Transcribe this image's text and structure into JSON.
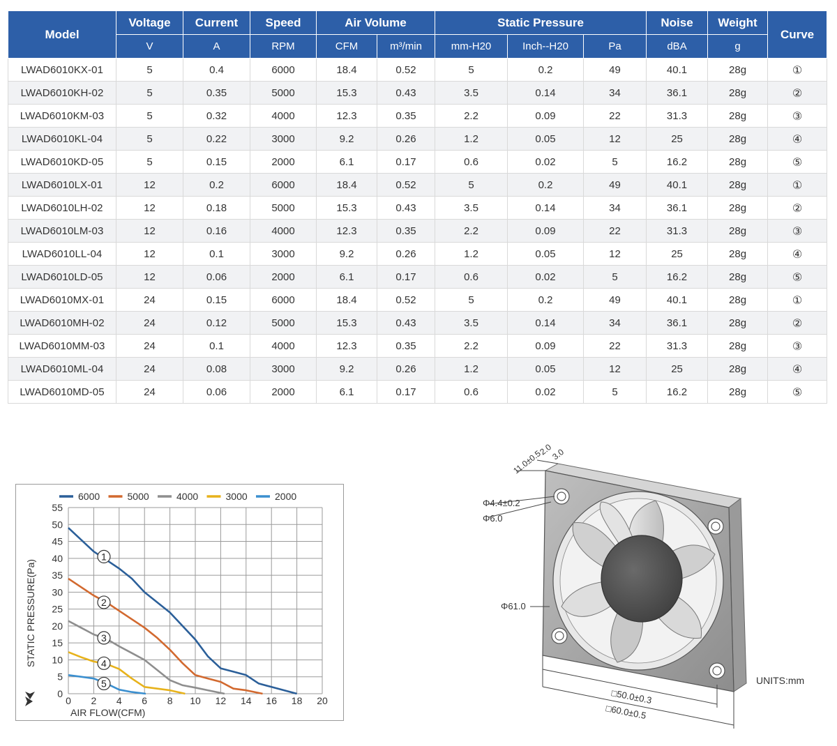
{
  "table": {
    "header": {
      "model": "Model",
      "voltage": "Voltage",
      "current": "Current",
      "speed": "Speed",
      "air_volume": "Air Volume",
      "static_pressure": "Static Pressure",
      "noise": "Noise",
      "weight": "Weight",
      "curve": "Curve"
    },
    "units": [
      "V",
      "A",
      "RPM",
      "CFM",
      "m³/min",
      "mm-H20",
      "Inch--H20",
      "Pa",
      "dBA",
      "g"
    ],
    "rows": [
      [
        "LWAD6010KX-01",
        "5",
        "0.4",
        "6000",
        "18.4",
        "0.52",
        "5",
        "0.2",
        "49",
        "40.1",
        "28g",
        "①"
      ],
      [
        "LWAD6010KH-02",
        "5",
        "0.35",
        "5000",
        "15.3",
        "0.43",
        "3.5",
        "0.14",
        "34",
        "36.1",
        "28g",
        "②"
      ],
      [
        "LWAD6010KM-03",
        "5",
        "0.32",
        "4000",
        "12.3",
        "0.35",
        "2.2",
        "0.09",
        "22",
        "31.3",
        "28g",
        "③"
      ],
      [
        "LWAD6010KL-04",
        "5",
        "0.22",
        "3000",
        "9.2",
        "0.26",
        "1.2",
        "0.05",
        "12",
        "25",
        "28g",
        "④"
      ],
      [
        "LWAD6010KD-05",
        "5",
        "0.15",
        "2000",
        "6.1",
        "0.17",
        "0.6",
        "0.02",
        "5",
        "16.2",
        "28g",
        "⑤"
      ],
      [
        "LWAD6010LX-01",
        "12",
        "0.2",
        "6000",
        "18.4",
        "0.52",
        "5",
        "0.2",
        "49",
        "40.1",
        "28g",
        "①"
      ],
      [
        "LWAD6010LH-02",
        "12",
        "0.18",
        "5000",
        "15.3",
        "0.43",
        "3.5",
        "0.14",
        "34",
        "36.1",
        "28g",
        "②"
      ],
      [
        "LWAD6010LM-03",
        "12",
        "0.16",
        "4000",
        "12.3",
        "0.35",
        "2.2",
        "0.09",
        "22",
        "31.3",
        "28g",
        "③"
      ],
      [
        "LWAD6010LL-04",
        "12",
        "0.1",
        "3000",
        "9.2",
        "0.26",
        "1.2",
        "0.05",
        "12",
        "25",
        "28g",
        "④"
      ],
      [
        "LWAD6010LD-05",
        "12",
        "0.06",
        "2000",
        "6.1",
        "0.17",
        "0.6",
        "0.02",
        "5",
        "16.2",
        "28g",
        "⑤"
      ],
      [
        "LWAD6010MX-01",
        "24",
        "0.15",
        "6000",
        "18.4",
        "0.52",
        "5",
        "0.2",
        "49",
        "40.1",
        "28g",
        "①"
      ],
      [
        "LWAD6010MH-02",
        "24",
        "0.12",
        "5000",
        "15.3",
        "0.43",
        "3.5",
        "0.14",
        "34",
        "36.1",
        "28g",
        "②"
      ],
      [
        "LWAD6010MM-03",
        "24",
        "0.1",
        "4000",
        "12.3",
        "0.35",
        "2.2",
        "0.09",
        "22",
        "31.3",
        "28g",
        "③"
      ],
      [
        "LWAD6010ML-04",
        "24",
        "0.08",
        "3000",
        "9.2",
        "0.26",
        "1.2",
        "0.05",
        "12",
        "25",
        "28g",
        "④"
      ],
      [
        "LWAD6010MD-05",
        "24",
        "0.06",
        "2000",
        "6.1",
        "0.17",
        "0.6",
        "0.02",
        "5",
        "16.2",
        "28g",
        "⑤"
      ]
    ],
    "colors": {
      "header_bg": "#2d5fa8",
      "header_text": "#ffffff",
      "stripe": "#f1f2f4"
    }
  },
  "chart_data": {
    "type": "line",
    "xlabel": "AIR FLOW(CFM)",
    "ylabel": "STATIC PRESSURE(Pa)",
    "xlim": [
      0,
      20
    ],
    "ylim": [
      0,
      55
    ],
    "xticks": [
      "0",
      "2",
      "4",
      "6",
      "8",
      "10",
      "12",
      "14",
      "16",
      "18",
      "20"
    ],
    "yticks": [
      "0",
      "5",
      "10",
      "15",
      "20",
      "25",
      "30",
      "35",
      "40",
      "45",
      "50",
      "55"
    ],
    "grid": true,
    "legend_position": "top",
    "series": [
      {
        "name": "6000",
        "color": "#2b5f99",
        "marker": "①",
        "marker_at": [
          2.8,
          40.5
        ],
        "points": [
          [
            0,
            49
          ],
          [
            2,
            42
          ],
          [
            3,
            39.5
          ],
          [
            4,
            37
          ],
          [
            5,
            34
          ],
          [
            6,
            30
          ],
          [
            8,
            24
          ],
          [
            10,
            16
          ],
          [
            11,
            11
          ],
          [
            12,
            7.5
          ],
          [
            13,
            6.5
          ],
          [
            14,
            5.5
          ],
          [
            15,
            3
          ],
          [
            16,
            2
          ],
          [
            17,
            1
          ],
          [
            18,
            0
          ]
        ]
      },
      {
        "name": "5000",
        "color": "#d2692f",
        "marker": "②",
        "marker_at": [
          2.8,
          27
        ],
        "points": [
          [
            0,
            34
          ],
          [
            2,
            29
          ],
          [
            3,
            27
          ],
          [
            4,
            24.5
          ],
          [
            5,
            22
          ],
          [
            6,
            19.5
          ],
          [
            7,
            16.5
          ],
          [
            8,
            13
          ],
          [
            9,
            9
          ],
          [
            10,
            5.5
          ],
          [
            11,
            4.5
          ],
          [
            12,
            3.5
          ],
          [
            13,
            1.5
          ],
          [
            14,
            1
          ],
          [
            15.3,
            0
          ]
        ]
      },
      {
        "name": "4000",
        "color": "#8e8e8e",
        "marker": "③",
        "marker_at": [
          2.8,
          16.5
        ],
        "points": [
          [
            0,
            21.5
          ],
          [
            1,
            19.5
          ],
          [
            2,
            17.5
          ],
          [
            3,
            16.2
          ],
          [
            4,
            14
          ],
          [
            5,
            12
          ],
          [
            6,
            10
          ],
          [
            7,
            7
          ],
          [
            8,
            4
          ],
          [
            9,
            2.5
          ],
          [
            10,
            1.8
          ],
          [
            11,
            1
          ],
          [
            12.3,
            0
          ]
        ]
      },
      {
        "name": "3000",
        "color": "#e7b21b",
        "marker": "④",
        "marker_at": [
          2.8,
          9
        ],
        "points": [
          [
            0,
            12.3
          ],
          [
            1,
            10.8
          ],
          [
            2,
            9.5
          ],
          [
            3,
            8.8
          ],
          [
            4,
            7.3
          ],
          [
            5,
            4.5
          ],
          [
            6,
            2
          ],
          [
            7,
            1.5
          ],
          [
            8,
            1
          ],
          [
            9.2,
            0
          ]
        ]
      },
      {
        "name": "2000",
        "color": "#3b8fcf",
        "marker": "⑤",
        "marker_at": [
          2.8,
          3
        ],
        "points": [
          [
            0,
            5.5
          ],
          [
            1,
            5
          ],
          [
            2,
            4.5
          ],
          [
            3,
            3
          ],
          [
            4,
            1.2
          ],
          [
            5,
            0.5
          ],
          [
            6.1,
            0
          ]
        ]
      }
    ]
  },
  "drawing": {
    "dim_11": "11.0±0.5",
    "dim_2": "2.0",
    "dim_3": "3.0",
    "hole_dia": "Φ4.4±0.2",
    "boss_dia": "Φ6.0",
    "fan_dia": "Φ61.0",
    "hole_spacing": "□50.0±0.3",
    "frame_size": "□60.0±0.5",
    "units": "UNITS:mm"
  }
}
